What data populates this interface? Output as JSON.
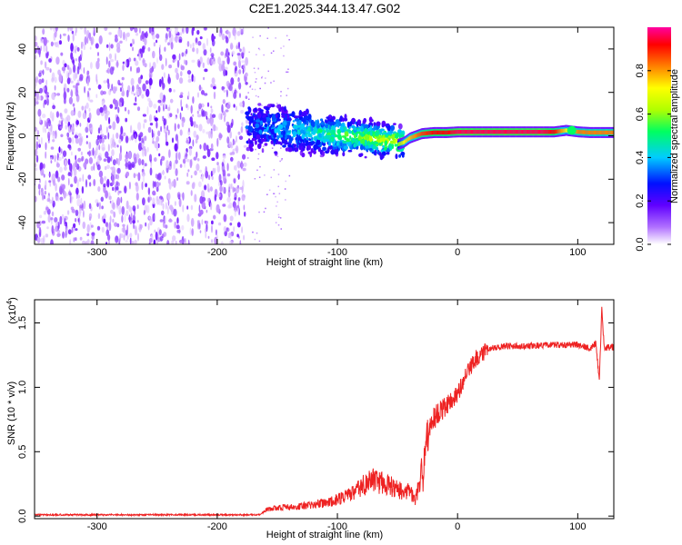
{
  "title": "C2E1.2025.344.13.47.G02",
  "colors": {
    "snr_line": "#ee2222",
    "spectral_ridge": "#ff2a1a",
    "scatter_dark": "#6a00ff",
    "scatter_light": "#d8c8ff"
  },
  "chart_data": [
    {
      "type": "heatmap",
      "name": "spectrogram",
      "xlabel": "Height of straight line (km)",
      "ylabel": "Frequency (Hz)",
      "xlim": [
        -352,
        130
      ],
      "ylim": [
        -50,
        50
      ],
      "x_ticks": [
        -300,
        -200,
        -100,
        0,
        100
      ],
      "x_tick_labels": [
        "-300",
        "-200",
        "-100",
        "0",
        "100"
      ],
      "y_ticks": [
        -40,
        -20,
        0,
        20,
        40
      ],
      "y_tick_labels": [
        "-40",
        "-20",
        "0",
        "20",
        "40"
      ],
      "colorbar": {
        "label": "Normalized spectral amplitude",
        "range": [
          0,
          1
        ],
        "ticks": [
          0.0,
          0.2,
          0.4,
          0.6,
          0.8
        ],
        "tick_labels": [
          "0.0",
          "0.2",
          "0.4",
          "0.6",
          "0.8"
        ],
        "colormap": [
          "#ffffff",
          "#b070ff",
          "#6000ff",
          "#0010ff",
          "#00ccff",
          "#00ff60",
          "#b0ff00",
          "#ffff00",
          "#ff8000",
          "#ff0000",
          "#ff00a0"
        ]
      },
      "noise_region": {
        "x_range": [
          -352,
          -175
        ],
        "freq_range": [
          -50,
          50
        ]
      },
      "scatter_region": {
        "x_range": [
          -175,
          -45
        ],
        "freq_range": [
          -20,
          25
        ]
      },
      "ridge": {
        "x": [
          -50,
          -45,
          -40,
          -35,
          -30,
          -20,
          -10,
          0,
          20,
          50,
          70,
          80,
          90,
          100,
          110,
          120,
          130
        ],
        "freq": [
          -4,
          -3,
          -1,
          0,
          1,
          1.5,
          1.5,
          1.8,
          1.8,
          1.8,
          1.8,
          1.8,
          2.5,
          1.8,
          1.5,
          1.5,
          1.5
        ],
        "amplitude": [
          0.55,
          0.7,
          0.75,
          0.8,
          0.85,
          0.9,
          0.9,
          0.95,
          0.95,
          0.95,
          0.95,
          0.9,
          0.7,
          0.8,
          0.8,
          0.8,
          0.8
        ]
      }
    },
    {
      "type": "line",
      "name": "snr",
      "xlabel": "Height of straight line (km)",
      "ylabel": "SNR (10 * v/v)",
      "y_scale_label": "(x10",
      "y_scale_exponent": "4",
      "y_scale_suffix": ")",
      "xlim": [
        -352,
        130
      ],
      "ylim": [
        -0.02,
        1.68
      ],
      "x_ticks": [
        -300,
        -200,
        -100,
        0,
        100
      ],
      "x_tick_labels": [
        "-300",
        "-200",
        "-100",
        "0",
        "100"
      ],
      "y_ticks": [
        0.0,
        0.5,
        1.0,
        1.5
      ],
      "y_tick_labels": [
        "0.0",
        "0.5",
        "1.0",
        "1.5"
      ],
      "series": [
        {
          "name": "SNR",
          "x": [
            -352,
            -300,
            -250,
            -200,
            -165,
            -160,
            -150,
            -130,
            -110,
            -100,
            -90,
            -80,
            -70,
            -60,
            -50,
            -40,
            -35,
            -30,
            -27,
            -24,
            -20,
            -15,
            -10,
            -5,
            0,
            5,
            10,
            15,
            20,
            25,
            30,
            40,
            60,
            80,
            100,
            110,
            115,
            118,
            120,
            122,
            125,
            130
          ],
          "y": [
            0.01,
            0.01,
            0.01,
            0.01,
            0.01,
            0.04,
            0.05,
            0.06,
            0.08,
            0.1,
            0.13,
            0.18,
            0.22,
            0.2,
            0.16,
            0.15,
            0.1,
            0.25,
            0.55,
            0.65,
            0.75,
            0.8,
            0.85,
            0.9,
            0.95,
            1.05,
            1.15,
            1.22,
            1.26,
            1.3,
            1.31,
            1.32,
            1.32,
            1.33,
            1.33,
            1.3,
            1.34,
            1.05,
            1.62,
            1.3,
            1.31,
            1.31
          ]
        }
      ]
    }
  ]
}
